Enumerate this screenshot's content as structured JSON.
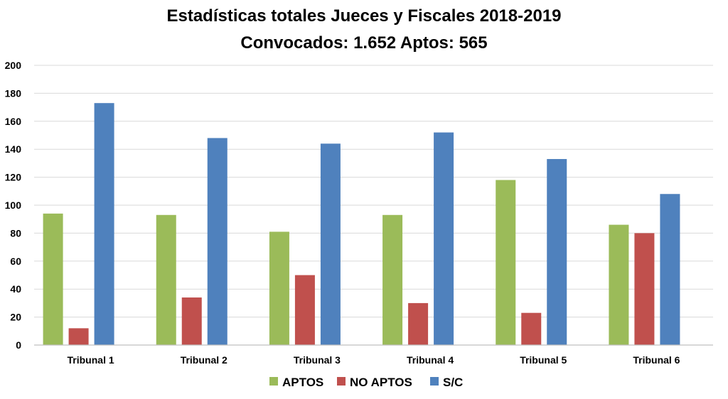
{
  "chart_data": {
    "type": "bar",
    "title": "Estadísticas totales Jueces y Fiscales 2018-2019",
    "subtitle": "Convocados: 1.652 Aptos:  565",
    "xlabel": "",
    "ylabel": "",
    "categories": [
      "Tribunal 1",
      "Tribunal 2",
      "Tribunal 3",
      "Tribunal 4",
      "Tribunal 5",
      "Tribunal 6"
    ],
    "series": [
      {
        "name": "APTOS",
        "color": "#9BBB59",
        "values": [
          94,
          93,
          81,
          93,
          118,
          86
        ]
      },
      {
        "name": "NO APTOS",
        "color": "#C0504D",
        "values": [
          12,
          34,
          50,
          30,
          23,
          80
        ]
      },
      {
        "name": "S/C",
        "color": "#4F81BD",
        "values": [
          173,
          148,
          144,
          152,
          133,
          108
        ]
      }
    ],
    "ylim": [
      0,
      200
    ],
    "yticks": [
      0,
      20,
      40,
      60,
      80,
      100,
      120,
      140,
      160,
      180,
      200
    ],
    "grid": true,
    "legend": "bottom"
  }
}
